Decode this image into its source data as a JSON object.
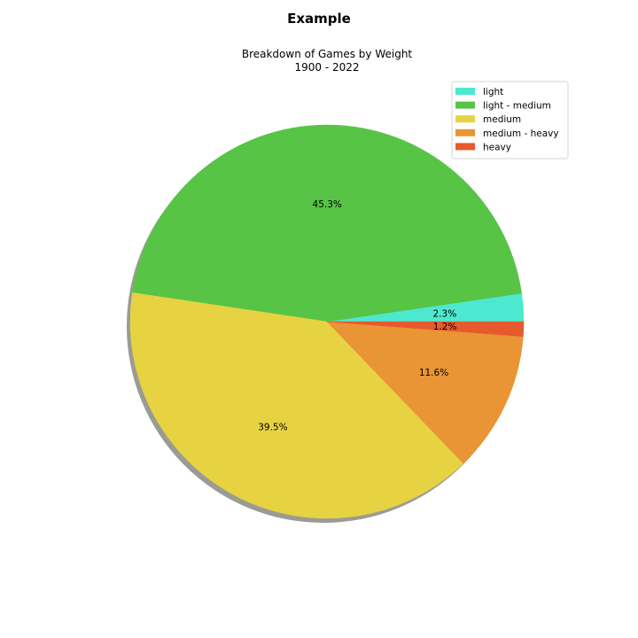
{
  "figure": {
    "title": "Example"
  },
  "chart_data": {
    "type": "pie",
    "title": "Breakdown of Games by Weight",
    "subtitle": "1900 - 2022",
    "shadow": true,
    "legend_position": "top-right",
    "slices": [
      {
        "label": "light",
        "value": 2.3,
        "pct_label": "2.3%",
        "color": "#4de8d0"
      },
      {
        "label": "light - medium",
        "value": 45.3,
        "pct_label": "45.3%",
        "color": "#57c446"
      },
      {
        "label": "medium",
        "value": 39.5,
        "pct_label": "39.5%",
        "color": "#e7d242"
      },
      {
        "label": "medium - heavy",
        "value": 11.6,
        "pct_label": "11.6%",
        "color": "#e99535"
      },
      {
        "label": "heavy",
        "value": 1.2,
        "pct_label": "1.2%",
        "color": "#e65a2e"
      }
    ]
  }
}
